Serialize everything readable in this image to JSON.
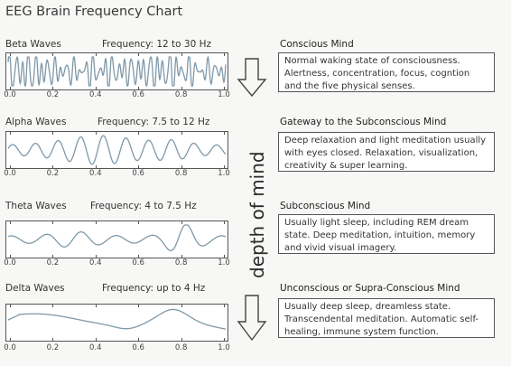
{
  "title": "EEG Brain Frequency Chart",
  "side_label": "depth of mind",
  "tick_labels": [
    "0.0",
    "0.2",
    "0.4",
    "0.6",
    "0.8",
    "1.0"
  ],
  "rows": [
    {
      "wave_name": "Beta Waves",
      "frequency": "Frequency: 12 to 30 Hz",
      "mind_title": "Conscious Mind",
      "description": "Normal waking state of consciousness. Alertness, concentration, focus, cogntion and the five physical senses."
    },
    {
      "wave_name": "Alpha Waves",
      "frequency": "Frequency: 7.5 to 12 Hz",
      "mind_title": "Gateway to the Subconscious Mind",
      "description": "Deep relaxation and light meditation usually with eyes closed. Relaxation, visualization, creativity & super learning."
    },
    {
      "wave_name": "Theta Waves",
      "frequency": "Frequency: 4 to 7.5 Hz",
      "mind_title": "Subconscious Mind",
      "description": "Usually light sleep, including REM dream state. Deep meditation, intuition, memory and vivid visual imagery."
    },
    {
      "wave_name": "Delta Waves",
      "frequency": "Frequency: up to 4 Hz",
      "mind_title": "Unconscious or Supra-Conscious Mind",
      "description": "Usually deep sleep, dreamless state. Transcendental meditation. Automatic self-healing, immune system function."
    }
  ],
  "colors": {
    "wave": "#7f98a8",
    "frame": "#555555",
    "arrow": "#444444"
  }
}
